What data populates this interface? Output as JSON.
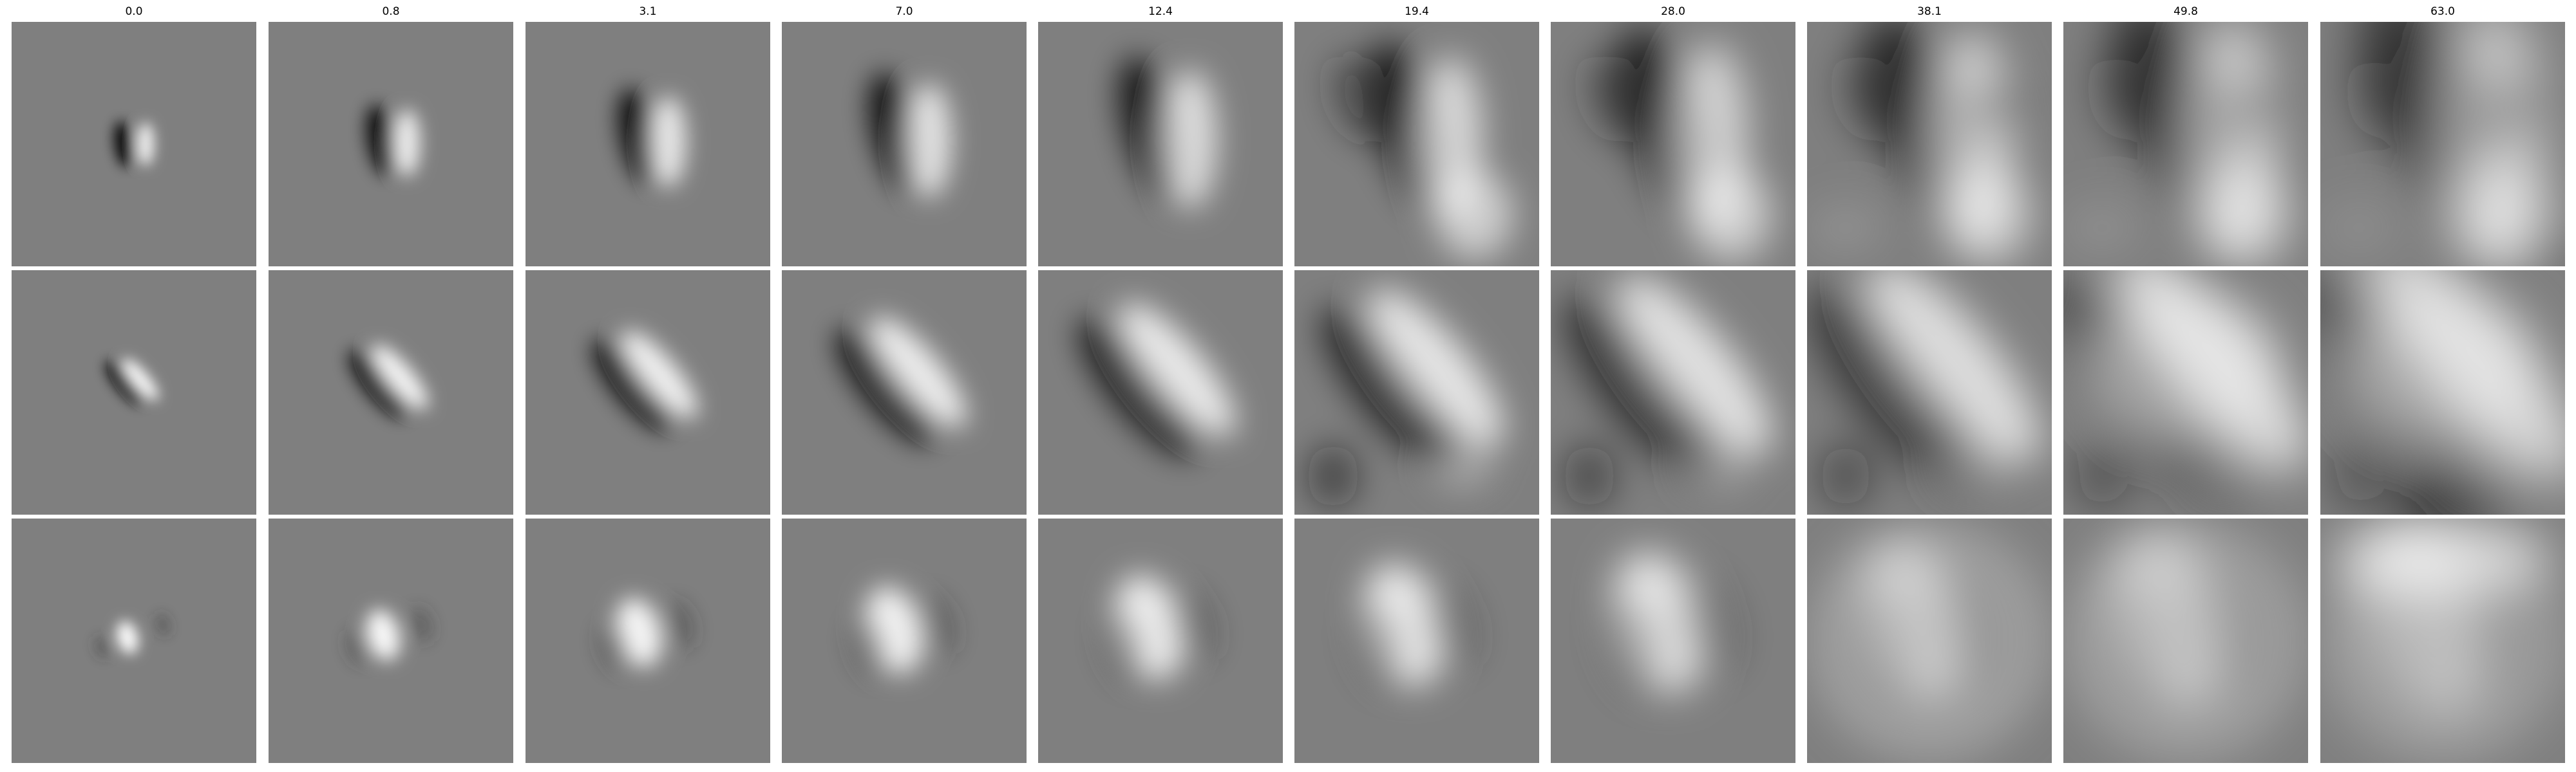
{
  "column_titles": [
    "0.0",
    "0.8",
    "3.1",
    "7.0",
    "12.4",
    "19.4",
    "28.0",
    "38.1",
    "49.8",
    "63.0"
  ],
  "grid": {
    "rows": 3,
    "cols": 10,
    "background_gray": "#7f7f7f",
    "separator_color": "#ffffff"
  }
}
